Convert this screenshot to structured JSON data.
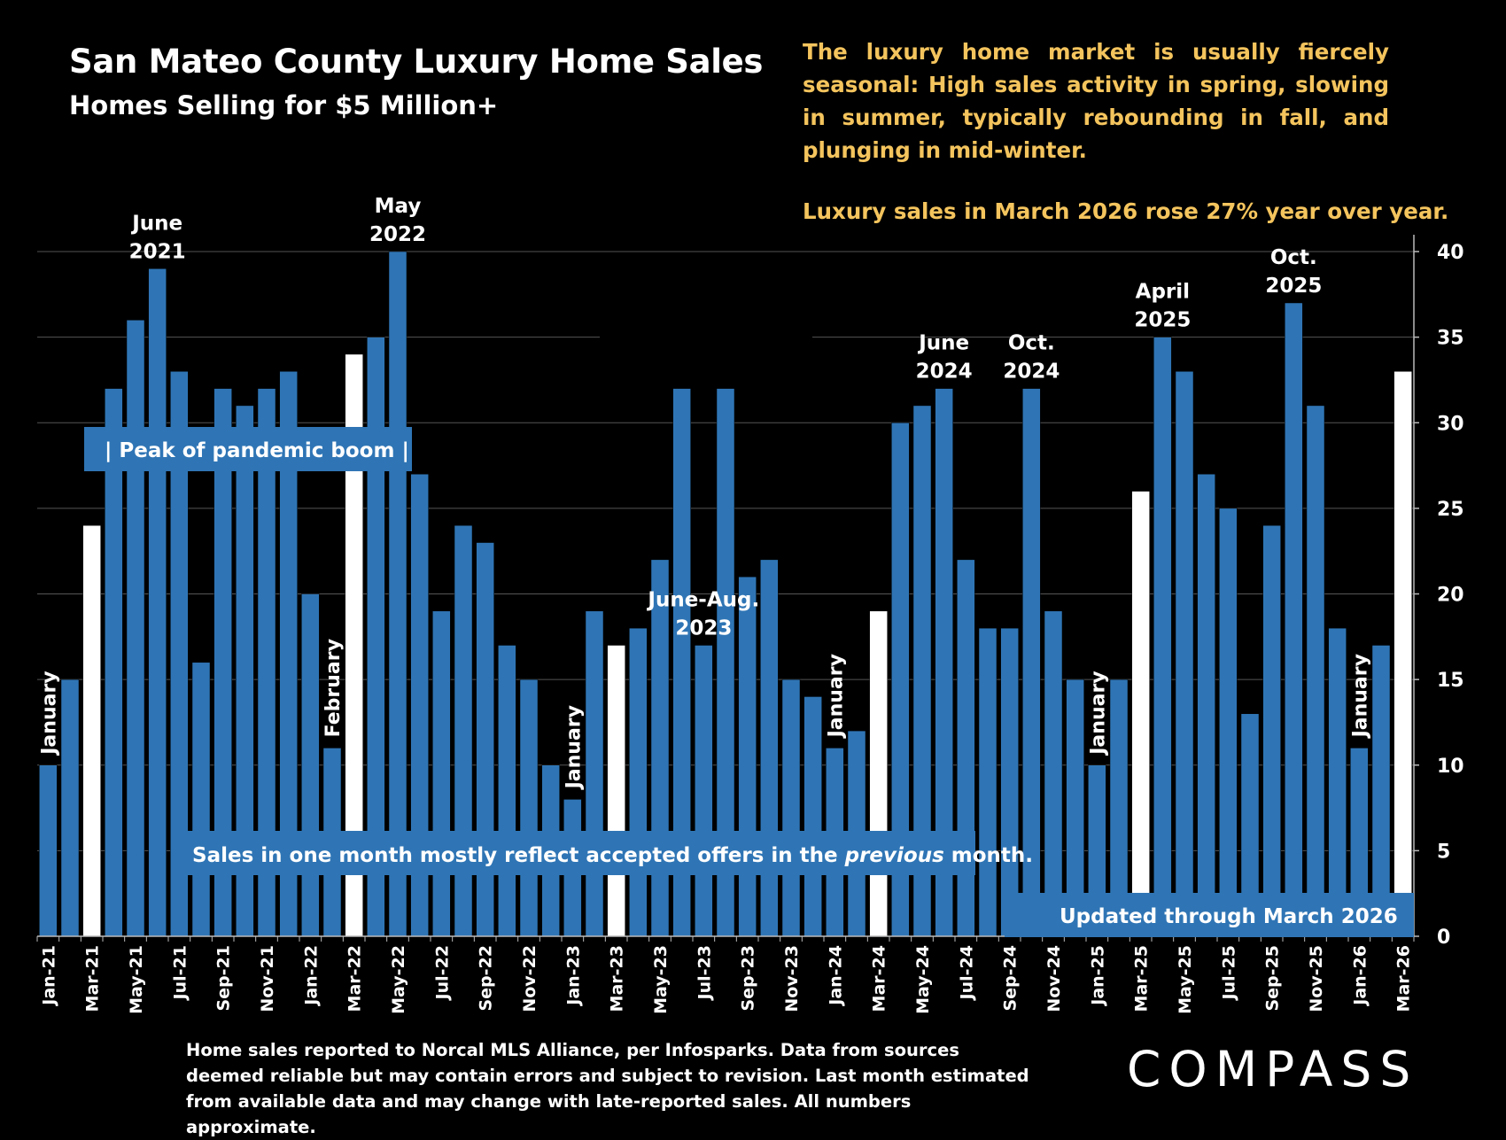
{
  "header": {
    "title": "San Mateo County Luxury Home Sales",
    "subtitle": "Homes Selling for $5 Million+"
  },
  "notes": {
    "seasonal": "The luxury home market is usually fiercely seasonal:  High sales activity in spring, slowing in summer, typically rebounding in fall, and plunging in mid-winter.",
    "yoy": "Luxury sales in March 2026 rose 27% year over year."
  },
  "callouts": {
    "pandemic": "| Peak of pandemic boom  |",
    "offers_prefix": "Sales in one month mostly reflect accepted offers in the ",
    "offers_italic": "previous",
    "offers_suffix": " month.",
    "updated": "Updated through March 2026"
  },
  "annotations": [
    {
      "bar": 0,
      "text": "January",
      "rotated": true
    },
    {
      "bar": 5,
      "text": "June 2021",
      "lines": [
        "June",
        "2021"
      ]
    },
    {
      "bar": 13,
      "text": "February",
      "rotated": true
    },
    {
      "bar": 16,
      "text": "May 2022",
      "lines": [
        "May",
        "2022"
      ]
    },
    {
      "bar": 24,
      "text": "January",
      "rotated": true
    },
    {
      "bar": 30,
      "text": "June-Aug. 2023",
      "lines": [
        "June-Aug.",
        "2023"
      ]
    },
    {
      "bar": 36,
      "text": "January",
      "rotated": true
    },
    {
      "bar": 41,
      "text": "June 2024",
      "lines": [
        "June",
        "2024"
      ]
    },
    {
      "bar": 45,
      "text": "Oct. 2024",
      "lines": [
        "Oct.",
        "2024"
      ]
    },
    {
      "bar": 48,
      "text": "January",
      "rotated": true
    },
    {
      "bar": 51,
      "text": "April 2025",
      "lines": [
        "April",
        "2025"
      ]
    },
    {
      "bar": 57,
      "text": "Oct. 2025",
      "lines": [
        "Oct.",
        "2025"
      ]
    },
    {
      "bar": 60,
      "text": "January",
      "rotated": true
    }
  ],
  "chart_data": {
    "type": "bar",
    "categories": [
      "Jan-21",
      "Feb-21",
      "Mar-21",
      "Apr-21",
      "May-21",
      "Jun-21",
      "Jul-21",
      "Aug-21",
      "Sep-21",
      "Oct-21",
      "Nov-21",
      "Dec-21",
      "Jan-22",
      "Feb-22",
      "Mar-22",
      "Apr-22",
      "May-22",
      "Jun-22",
      "Jul-22",
      "Aug-22",
      "Sep-22",
      "Oct-22",
      "Nov-22",
      "Dec-22",
      "Jan-23",
      "Feb-23",
      "Mar-23",
      "Apr-23",
      "May-23",
      "Jun-23",
      "Jul-23",
      "Aug-23",
      "Sep-23",
      "Oct-23",
      "Nov-23",
      "Dec-23",
      "Jan-24",
      "Feb-24",
      "Mar-24",
      "Apr-24",
      "May-24",
      "Jun-24",
      "Jul-24",
      "Aug-24",
      "Sep-24",
      "Oct-24",
      "Nov-24",
      "Dec-24",
      "Jan-25",
      "Feb-25",
      "Mar-25",
      "Apr-25",
      "May-25",
      "Jun-25",
      "Jul-25",
      "Aug-25",
      "Sep-25",
      "Oct-25",
      "Nov-25",
      "Dec-25",
      "Jan-26",
      "Feb-26",
      "Mar-26"
    ],
    "x_tick_labels": [
      "Jan-21",
      "Mar-21",
      "May-21",
      "Jul-21",
      "Sep-21",
      "Nov-21",
      "Jan-22",
      "Mar-22",
      "May-22",
      "Jul-22",
      "Sep-22",
      "Nov-22",
      "Jan-23",
      "Mar-23",
      "May-23",
      "Jul-23",
      "Sep-23",
      "Nov-23",
      "Jan-24",
      "Mar-24",
      "May-24",
      "Jul-24",
      "Sep-24",
      "Nov-24",
      "Jan-25",
      "Mar-25",
      "May-25",
      "Jul-25",
      "Sep-25",
      "Nov-25",
      "Jan-26",
      "Mar-26"
    ],
    "values": [
      10,
      15,
      24,
      32,
      36,
      39,
      33,
      16,
      32,
      31,
      32,
      33,
      20,
      11,
      34,
      35,
      40,
      27,
      19,
      24,
      23,
      17,
      15,
      10,
      8,
      19,
      17,
      18,
      22,
      32,
      17,
      32,
      21,
      22,
      15,
      14,
      11,
      12,
      19,
      30,
      31,
      32,
      22,
      18,
      18,
      32,
      19,
      15,
      10,
      15,
      26,
      35,
      33,
      27,
      25,
      13,
      24,
      37,
      31,
      18,
      11,
      17,
      33
    ],
    "highlight_color": "#ffffff",
    "highlighted_categories": [
      "Mar-21",
      "Mar-22",
      "Mar-23",
      "Mar-24",
      "Mar-25",
      "Mar-26"
    ],
    "bar_color": "#2f75b5",
    "ylim": [
      0,
      40
    ],
    "yticks": [
      0,
      5,
      10,
      15,
      20,
      25,
      30,
      35,
      40
    ],
    "y_axis_side": "right",
    "grid": true
  },
  "footer": {
    "disclaimer": "Home sales reported to Norcal MLS Alliance, per Infosparks. Data from sources deemed reliable but may contain errors and subject to revision.  Last month estimated from available data and may change with late-reported sales. All numbers approximate.",
    "brand": "COMPASS"
  }
}
